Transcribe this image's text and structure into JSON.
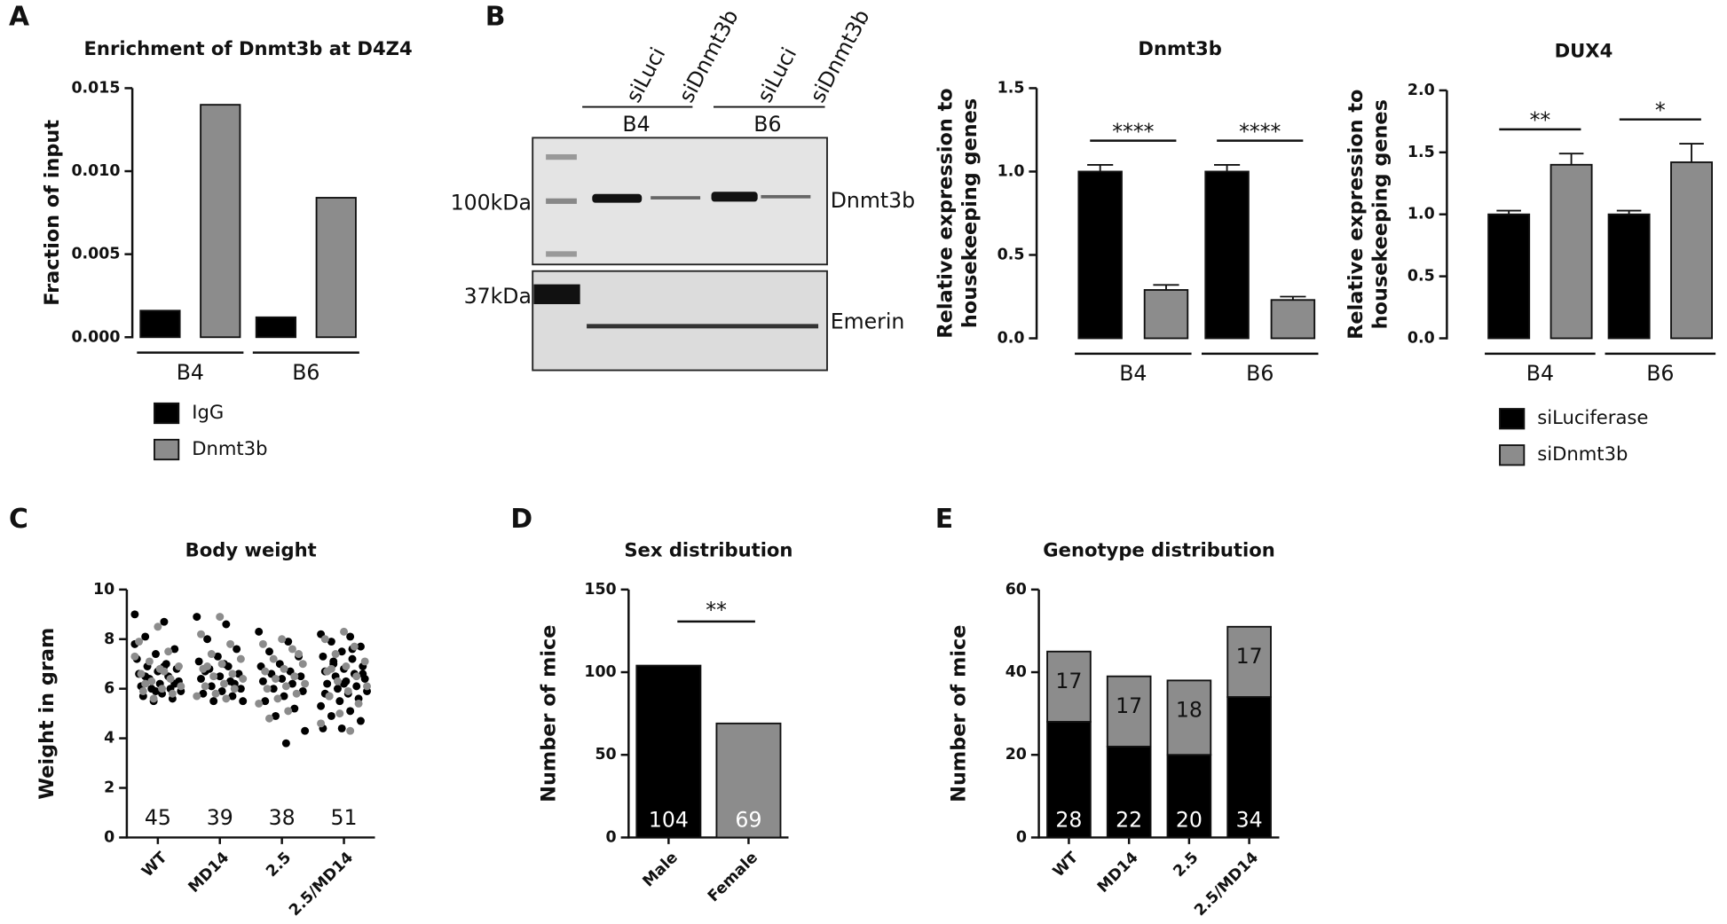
{
  "panels": [
    "A",
    "B",
    "C",
    "D",
    "E"
  ],
  "blot": {
    "lanes": [
      "siLuci",
      "siDnmt3b",
      "siLuci",
      "siDnmt3b"
    ],
    "groups": [
      "B4",
      "B6"
    ],
    "markers": [
      "100kDa",
      "37kDa"
    ],
    "proteins": [
      "Dnmt3b",
      "Emerin"
    ]
  },
  "chart_data": [
    {
      "type": "bar",
      "title": "Enrichment of Dnmt3b at D4Z4",
      "ylabel": "Fraction of input",
      "categories": [
        "B4",
        "B6"
      ],
      "series": [
        {
          "name": "IgG",
          "color": "#000000",
          "values": [
            0.0016,
            0.0012
          ]
        },
        {
          "name": "Dnmt3b",
          "color": "#8c8c8c",
          "values": [
            0.014,
            0.0084
          ]
        }
      ],
      "ylim": [
        0,
        0.015
      ],
      "yticks": [
        {
          "value": 0,
          "label": "0.000"
        },
        {
          "value": 0.005,
          "label": "0.005"
        },
        {
          "value": 0.01,
          "label": "0.010"
        },
        {
          "value": 0.015,
          "label": "0.015"
        }
      ],
      "legend": true
    },
    {
      "type": "bar",
      "title": "Dnmt3b",
      "ylabel": [
        "Relative expression to",
        "housekeeping genes"
      ],
      "categories": [
        "B4",
        "B6"
      ],
      "series": [
        {
          "color": "#000000",
          "values": [
            1.0,
            1.0
          ],
          "errors": [
            0.04,
            0.04
          ]
        },
        {
          "color": "#8c8c8c",
          "values": [
            0.29,
            0.23
          ],
          "errors": [
            0.03,
            0.02
          ]
        }
      ],
      "annotations": [
        "****",
        "****"
      ],
      "ylim": [
        0,
        1.5
      ],
      "yticks": [
        {
          "value": 0,
          "label": "0.0"
        },
        {
          "value": 0.5,
          "label": "0.5"
        },
        {
          "value": 1,
          "label": "1.0"
        },
        {
          "value": 1.5,
          "label": "1.5"
        }
      ],
      "legend": false
    },
    {
      "type": "bar",
      "title": "DUX4",
      "ylabel": [
        "Relative expression to",
        "housekeeping genes"
      ],
      "categories": [
        "B4",
        "B6"
      ],
      "series": [
        {
          "name": "siLuciferase",
          "color": "#000000",
          "values": [
            1.0,
            1.0
          ],
          "errors": [
            0.03,
            0.03
          ]
        },
        {
          "name": "siDnmt3b",
          "color": "#8c8c8c",
          "values": [
            1.4,
            1.42
          ],
          "errors": [
            0.09,
            0.15
          ]
        }
      ],
      "annotations": [
        "**",
        "*"
      ],
      "ylim": [
        0,
        2
      ],
      "yticks": [
        {
          "value": 0,
          "label": "0.0"
        },
        {
          "value": 0.5,
          "label": "0.5"
        },
        {
          "value": 1,
          "label": "1.0"
        },
        {
          "value": 1.5,
          "label": "1.5"
        },
        {
          "value": 2,
          "label": "2.0"
        }
      ],
      "legend": true
    },
    {
      "type": "strip",
      "title": "Body weight",
      "ylabel": "Weight in gram",
      "categories": [
        "WT",
        "MD14",
        "2.5",
        "2.5/MD14"
      ],
      "counts": [
        45,
        39,
        38,
        51
      ],
      "series": [
        {
          "color": "#000000",
          "values": [
            [
              9.0,
              8.7,
              8.1,
              7.6,
              7.4,
              7.2,
              7.0,
              6.9,
              6.8,
              6.7,
              6.6,
              6.5,
              6.4,
              6.3,
              6.2,
              6.1,
              6.0,
              6.0,
              5.9,
              5.8,
              5.7,
              5.6,
              5.5,
              7.8,
              6.9,
              6.5,
              6.2,
              5.9
            ],
            [
              8.9,
              8.6,
              8.0,
              7.6,
              7.3,
              7.1,
              6.9,
              6.8,
              6.6,
              6.5,
              6.4,
              6.3,
              6.1,
              6.0,
              5.9,
              5.8,
              5.7,
              5.5,
              5.5,
              7.0,
              6.7,
              6.2
            ],
            [
              8.3,
              7.9,
              7.5,
              7.3,
              7.0,
              6.9,
              6.7,
              6.6,
              6.5,
              6.4,
              6.3,
              6.2,
              6.0,
              5.9,
              5.7,
              5.5,
              5.2,
              4.9,
              4.3,
              3.8
            ],
            [
              8.2,
              8.1,
              7.9,
              7.7,
              7.5,
              7.3,
              7.2,
              7.0,
              6.9,
              6.8,
              6.7,
              6.6,
              6.5,
              6.4,
              6.3,
              6.2,
              6.1,
              6.0,
              5.9,
              5.8,
              5.7,
              5.6,
              5.5,
              5.3,
              5.1,
              4.9,
              4.7,
              4.4,
              4.4,
              7.6,
              7.1,
              6.6,
              6.2,
              5.8
            ]
          ]
        },
        {
          "color": "#8c8c8c",
          "values": [
            [
              8.5,
              7.9,
              7.5,
              7.1,
              6.9,
              6.8,
              6.6,
              6.4,
              6.3,
              6.1,
              6.0,
              5.9,
              5.8,
              5.6,
              7.3,
              6.7,
              6.2
            ],
            [
              8.9,
              8.2,
              7.8,
              7.4,
              7.2,
              7.0,
              6.8,
              6.6,
              6.5,
              6.4,
              6.2,
              6.1,
              6.0,
              5.8,
              5.7,
              5.6,
              6.9
            ],
            [
              8.0,
              7.8,
              7.6,
              7.2,
              7.0,
              6.8,
              6.7,
              6.5,
              6.4,
              6.2,
              6.1,
              6.0,
              5.8,
              5.6,
              5.4,
              5.1,
              4.8,
              7.4
            ],
            [
              8.3,
              8.0,
              7.7,
              7.4,
              7.1,
              6.9,
              6.7,
              6.5,
              6.3,
              6.1,
              5.9,
              5.7,
              5.4,
              5.0,
              4.6,
              4.3,
              6.8
            ]
          ]
        }
      ],
      "ylim": [
        0,
        10
      ],
      "yticks": [
        0,
        2,
        4,
        6,
        8,
        10
      ]
    },
    {
      "type": "colorbar",
      "title": "Sex distribution",
      "ylabel": "Number of mice",
      "categories": [
        "Male",
        "Female"
      ],
      "values": [
        104,
        69
      ],
      "colors": [
        "#000000",
        "#8c8c8c"
      ],
      "label_color": "#ffffff",
      "annotation": "**",
      "ylim": [
        0,
        150
      ],
      "yticks": [
        0,
        50,
        100,
        150
      ]
    },
    {
      "type": "stacked",
      "title": "Genotype distribution",
      "ylabel": "Number of mice",
      "categories": [
        "WT",
        "MD14",
        "2.5",
        "2.5/MD14"
      ],
      "series": [
        {
          "color": "#000000",
          "label_color": "#ffffff",
          "values": [
            28,
            22,
            20,
            34
          ]
        },
        {
          "color": "#8c8c8c",
          "label_color": "#111111",
          "values": [
            17,
            17,
            18,
            17
          ]
        }
      ],
      "ylim": [
        0,
        60
      ],
      "yticks": [
        0,
        20,
        40,
        60
      ]
    }
  ]
}
